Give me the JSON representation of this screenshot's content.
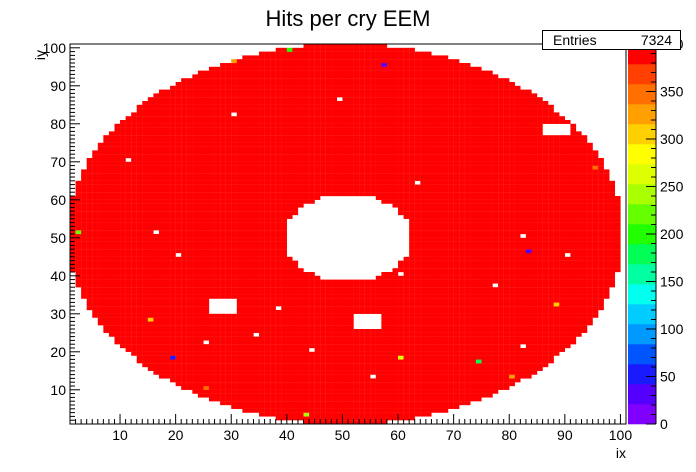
{
  "chart_data": {
    "type": "heatmap",
    "title": "Hits per cry EEM",
    "xlabel": "ix",
    "ylabel": "iy",
    "xlim": [
      1,
      101
    ],
    "ylim": [
      1,
      101
    ],
    "x_ticks": [
      10,
      20,
      30,
      40,
      50,
      60,
      70,
      80,
      90,
      100
    ],
    "y_ticks": [
      10,
      20,
      30,
      40,
      50,
      60,
      70,
      80,
      90,
      100
    ],
    "z_range": [
      0,
      400
    ],
    "z_ticks": [
      "0",
      "50",
      "100",
      "150",
      "200",
      "250",
      "300",
      "350",
      "400"
    ],
    "dominant_value": 400,
    "stats": {
      "label": "Entries",
      "value": "7324"
    },
    "palette": [
      "#7f00ff",
      "#5500ff",
      "#1a1aff",
      "#0055ff",
      "#0099ff",
      "#00ccff",
      "#00ffee",
      "#00ffa0",
      "#00ff55",
      "#22ff00",
      "#66ff00",
      "#aaff00",
      "#ddff00",
      "#ffff00",
      "#ffd000",
      "#ffa000",
      "#ff7000",
      "#ff4000",
      "#ff0000"
    ],
    "shape": {
      "outer_center": [
        50.5,
        51
      ],
      "outer_radius_x": 50,
      "outer_radius_y": 50,
      "inner_center": [
        51,
        50
      ],
      "inner_radius": 11.5
    },
    "empty_regions": [
      {
        "ix": [
          26,
          30
        ],
        "iy": [
          30,
          33
        ]
      },
      {
        "ix": [
          52,
          56
        ],
        "iy": [
          26,
          29
        ]
      },
      {
        "ix": [
          86,
          90
        ],
        "iy": [
          77,
          79
        ]
      }
    ],
    "low_cells": [
      {
        "ix": 57,
        "iy": 95,
        "value": 30
      },
      {
        "ix": 83,
        "iy": 46,
        "value": 40
      },
      {
        "ix": 19,
        "iy": 18,
        "value": 60
      },
      {
        "ix": 74,
        "iy": 17,
        "value": 180
      },
      {
        "ix": 19,
        "iy": 93,
        "value": 150
      },
      {
        "ix": 40,
        "iy": 99,
        "value": 210
      },
      {
        "ix": 2,
        "iy": 51,
        "value": 230
      },
      {
        "ix": 100,
        "iy": 53,
        "value": 210
      },
      {
        "ix": 5,
        "iy": 76,
        "value": 300
      },
      {
        "ix": 15,
        "iy": 28,
        "value": 310
      },
      {
        "ix": 43,
        "iy": 3,
        "value": 250
      },
      {
        "ix": 97,
        "iy": 28,
        "value": 330
      },
      {
        "ix": 80,
        "iy": 13,
        "value": 320
      },
      {
        "ix": 10,
        "iy": 87,
        "value": 340
      },
      {
        "ix": 60,
        "iy": 18,
        "value": 260
      },
      {
        "ix": 30,
        "iy": 96,
        "value": 320
      },
      {
        "ix": 88,
        "iy": 32,
        "value": 300
      },
      {
        "ix": 25,
        "iy": 10,
        "value": 340
      },
      {
        "ix": 70,
        "iy": 98,
        "value": 330
      },
      {
        "ix": 95,
        "iy": 68,
        "value": 350
      }
    ],
    "white_cells": [
      {
        "ix": 30,
        "iy": 82
      },
      {
        "ix": 49,
        "iy": 86
      },
      {
        "ix": 16,
        "iy": 51
      },
      {
        "ix": 20,
        "iy": 45
      },
      {
        "ix": 63,
        "iy": 64
      },
      {
        "ix": 82,
        "iy": 50
      },
      {
        "ix": 77,
        "iy": 37
      },
      {
        "ix": 38,
        "iy": 31
      },
      {
        "ix": 25,
        "iy": 22
      },
      {
        "ix": 44,
        "iy": 20
      },
      {
        "ix": 82,
        "iy": 21
      },
      {
        "ix": 55,
        "iy": 13
      },
      {
        "ix": 34,
        "iy": 24
      },
      {
        "ix": 90,
        "iy": 45
      },
      {
        "ix": 60,
        "iy": 40
      },
      {
        "ix": 11,
        "iy": 70
      }
    ]
  }
}
